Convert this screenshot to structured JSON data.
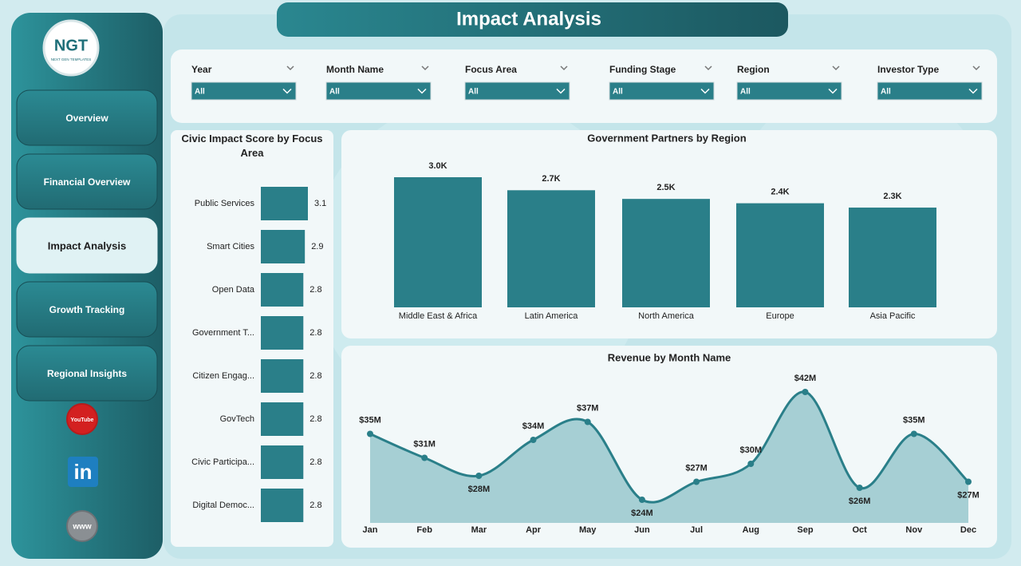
{
  "header": {
    "title": "Impact Analysis"
  },
  "logo": {
    "text": "NGT",
    "subtext": "NEXT GEN TEMPLATES"
  },
  "nav": [
    {
      "label": "Overview",
      "active": false
    },
    {
      "label": "Financial Overview",
      "active": false
    },
    {
      "label": "Impact Analysis",
      "active": true
    },
    {
      "label": "Growth Tracking",
      "active": false
    },
    {
      "label": "Regional Insights",
      "active": false
    }
  ],
  "icons": [
    "YouTube",
    "in",
    "www"
  ],
  "filters": [
    {
      "label": "Year",
      "value": "All"
    },
    {
      "label": "Month Name",
      "value": "All"
    },
    {
      "label": "Focus Area",
      "value": "All"
    },
    {
      "label": "Funding Stage",
      "value": "All"
    },
    {
      "label": "Region",
      "value": "All"
    },
    {
      "label": "Investor Type",
      "value": "All"
    }
  ],
  "chart_data": [
    {
      "type": "bar",
      "orientation": "horizontal",
      "title": "Civic Impact Score by Focus Area",
      "categories": [
        "Public Services",
        "Smart Cities",
        "Open Data",
        "Government T...",
        "Citizen Engag...",
        "GovTech",
        "Civic Participa...",
        "Digital Democ..."
      ],
      "values": [
        3.1,
        2.9,
        2.8,
        2.8,
        2.8,
        2.8,
        2.8,
        2.8
      ],
      "color": "#2a7f89"
    },
    {
      "type": "bar",
      "orientation": "vertical",
      "title": "Government Partners by Region",
      "categories": [
        "Middle East & Africa",
        "Latin America",
        "North America",
        "Europe",
        "Asia Pacific"
      ],
      "values": [
        3000,
        2700,
        2500,
        2400,
        2300
      ],
      "value_labels": [
        "3.0K",
        "2.7K",
        "2.5K",
        "2.4K",
        "2.3K"
      ],
      "color": "#2a7f89"
    },
    {
      "type": "area",
      "title": "Revenue by Month Name",
      "categories": [
        "Jan",
        "Feb",
        "Mar",
        "Apr",
        "May",
        "Jun",
        "Jul",
        "Aug",
        "Sep",
        "Oct",
        "Nov",
        "Dec"
      ],
      "values": [
        35000000,
        31000000,
        28000000,
        34000000,
        37000000,
        24000000,
        27000000,
        30000000,
        42000000,
        26000000,
        35000000,
        27000000
      ],
      "value_labels": [
        "$35M",
        "$31M",
        "$28M",
        "$34M",
        "$37M",
        "$24M",
        "$27M",
        "$30M",
        "$42M",
        "$26M",
        "$35M",
        "$27M"
      ],
      "color": "#2a7f89",
      "fill": "#a6cfd4"
    }
  ]
}
